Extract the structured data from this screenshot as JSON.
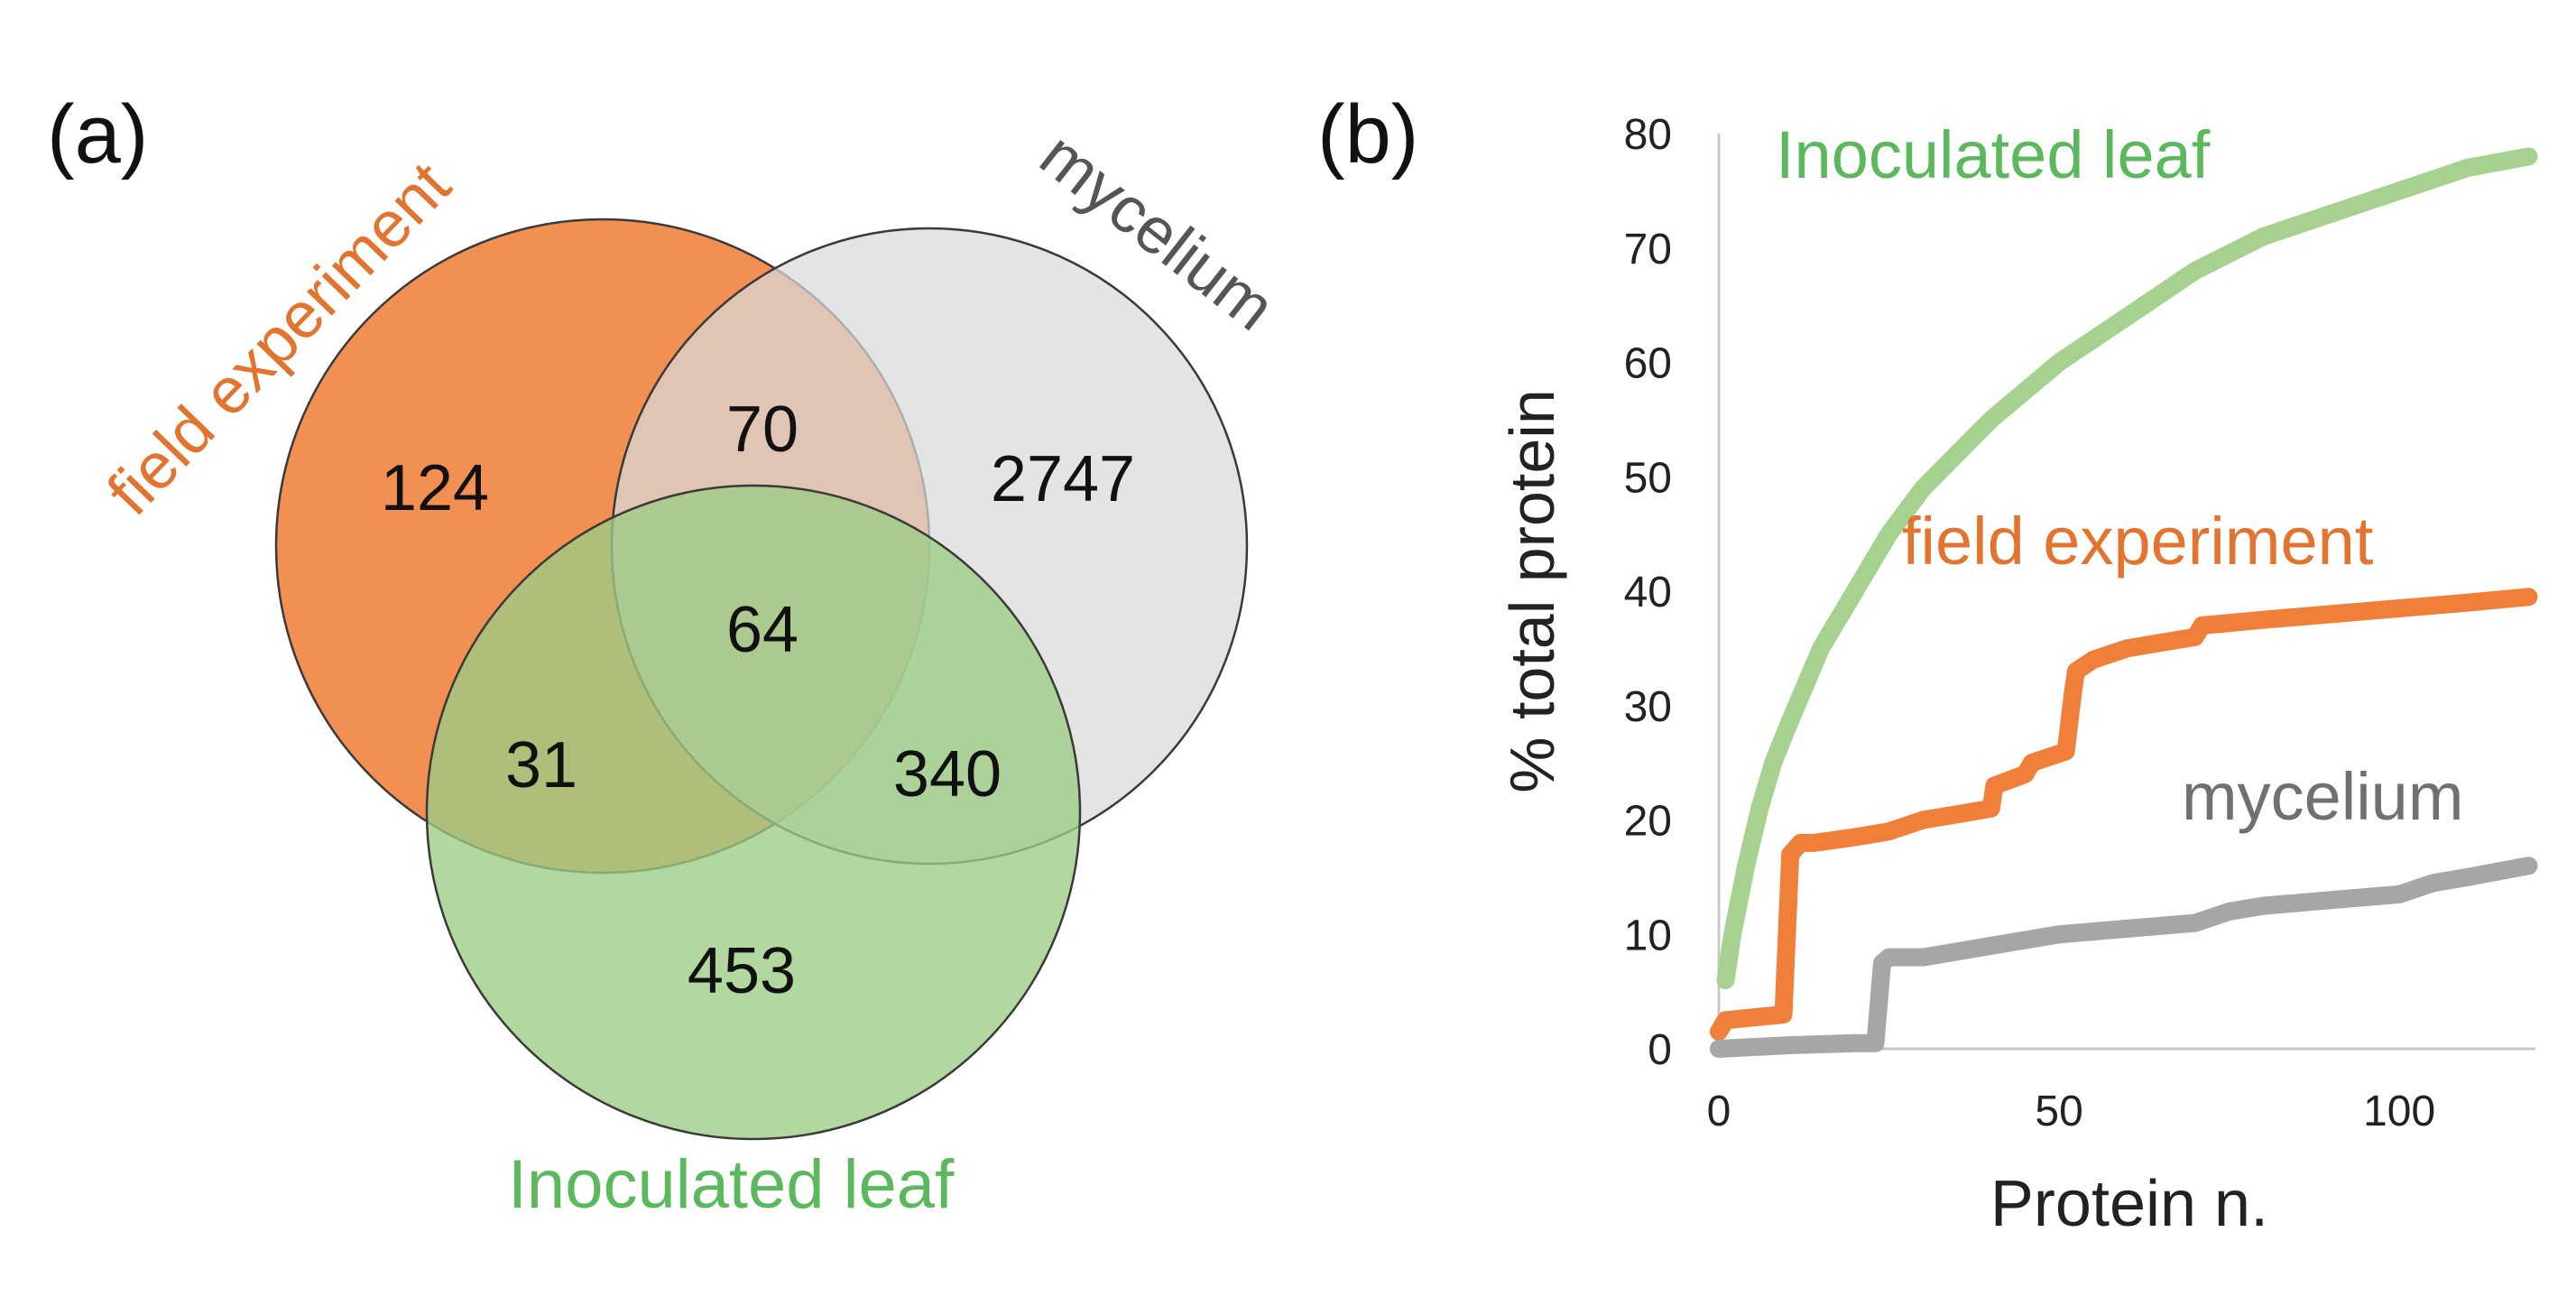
{
  "panel_a": {
    "label": "(a)",
    "sets": {
      "field": {
        "name": "field experiment",
        "color": "#f07f3a"
      },
      "mycelium": {
        "name": "mycelium",
        "color": "#d9d9d9",
        "label_color": "#555555"
      },
      "leaf": {
        "name": "Inoculated leaf",
        "color": "#9ccc84",
        "label_color": "#5cb85c"
      }
    },
    "regions": {
      "field_only": "124",
      "mycelium_only": "2747",
      "leaf_only": "453",
      "field_mycelium": "70",
      "field_leaf": "31",
      "mycelium_leaf": "340",
      "all_three": "64"
    }
  },
  "panel_b": {
    "label": "(b)",
    "series_labels": {
      "leaf": "Inoculated leaf",
      "field": "field experiment",
      "mycelium": "mycelium"
    }
  },
  "chart_data": [
    {
      "type": "venn",
      "title": "(a)",
      "sets": [
        "field experiment",
        "mycelium",
        "Inoculated leaf"
      ],
      "regions": [
        {
          "sets": [
            "field experiment"
          ],
          "value": 124
        },
        {
          "sets": [
            "mycelium"
          ],
          "value": 2747
        },
        {
          "sets": [
            "Inoculated leaf"
          ],
          "value": 453
        },
        {
          "sets": [
            "field experiment",
            "mycelium"
          ],
          "value": 70
        },
        {
          "sets": [
            "field experiment",
            "Inoculated leaf"
          ],
          "value": 31
        },
        {
          "sets": [
            "mycelium",
            "Inoculated leaf"
          ],
          "value": 340
        },
        {
          "sets": [
            "field experiment",
            "mycelium",
            "Inoculated leaf"
          ],
          "value": 64
        }
      ]
    },
    {
      "type": "line",
      "title": "(b)",
      "xlabel": "Protein n.",
      "ylabel": "% total protein",
      "xlim": [
        0,
        120
      ],
      "ylim": [
        0,
        80
      ],
      "xticks": [
        0,
        50,
        100
      ],
      "yticks": [
        0,
        10,
        20,
        30,
        40,
        50,
        60,
        70,
        80
      ],
      "grid": false,
      "series": [
        {
          "name": "Inoculated leaf",
          "color": "#a6d18f",
          "x": [
            1,
            2,
            4,
            6,
            8,
            10,
            15,
            20,
            25,
            30,
            40,
            50,
            60,
            70,
            80,
            90,
            100,
            110,
            119
          ],
          "y": [
            6,
            10,
            16,
            21,
            25,
            28,
            35,
            40,
            45,
            49,
            55,
            60,
            64,
            68,
            71,
            73,
            75,
            77,
            78
          ]
        },
        {
          "name": "field experiment",
          "color": "#f07f3a",
          "x": [
            0,
            1,
            9.5,
            10.5,
            12,
            14,
            20,
            25,
            30,
            35,
            40,
            40.5,
            45,
            46,
            51,
            52,
            52.5,
            55,
            60,
            65,
            70,
            71,
            80,
            90,
            100,
            110,
            119
          ],
          "y": [
            1.5,
            2.5,
            3,
            17,
            18,
            18,
            18.5,
            19,
            20,
            20.5,
            21,
            23,
            24,
            25,
            26,
            31,
            33,
            34,
            35,
            35.5,
            36,
            37,
            37.5,
            38,
            38.5,
            39,
            39.5
          ]
        },
        {
          "name": "mycelium",
          "color": "#a6a6a6",
          "x": [
            0,
            10,
            20,
            23,
            24,
            25,
            30,
            35,
            40,
            50,
            60,
            70,
            75,
            80,
            90,
            100,
            105,
            110,
            119
          ],
          "y": [
            0,
            0.3,
            0.5,
            0.5,
            7.5,
            8,
            8,
            8.5,
            9,
            10,
            10.5,
            11,
            12,
            12.5,
            13,
            13.5,
            14.5,
            15,
            16
          ]
        }
      ]
    }
  ]
}
